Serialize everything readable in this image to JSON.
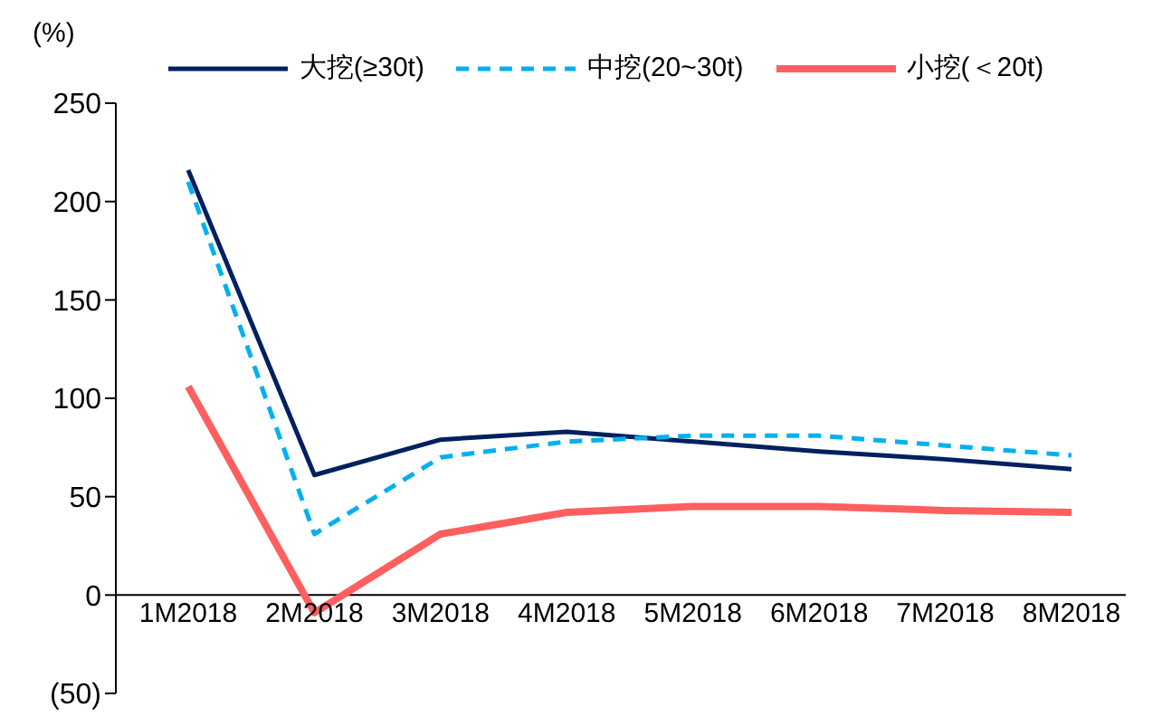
{
  "chart_data": {
    "type": "line",
    "ylabel": "(%)",
    "categories": [
      "1M2018",
      "2M2018",
      "3M2018",
      "4M2018",
      "5M2018",
      "6M2018",
      "7M2018",
      "8M2018"
    ],
    "series": [
      {
        "name": "大挖(≥30t)",
        "color": "#002060",
        "values": [
          216,
          61,
          79,
          83,
          78,
          73,
          69,
          64
        ]
      },
      {
        "name": "中挖(20~30t)",
        "color": "#00b0f0",
        "line_style": "dashed",
        "values": [
          210,
          31,
          70,
          78,
          81,
          81,
          76,
          71
        ]
      },
      {
        "name": "小挖(＜20t)",
        "color": "#ff5f5f",
        "values": [
          106,
          -9,
          31,
          42,
          45,
          45,
          43,
          42
        ]
      }
    ],
    "ylim": [
      -50,
      250
    ],
    "yticks": [
      {
        "value": -50,
        "label": "(50)"
      },
      0,
      50,
      100,
      150,
      200,
      250
    ],
    "legend": "top",
    "marker": "none"
  }
}
